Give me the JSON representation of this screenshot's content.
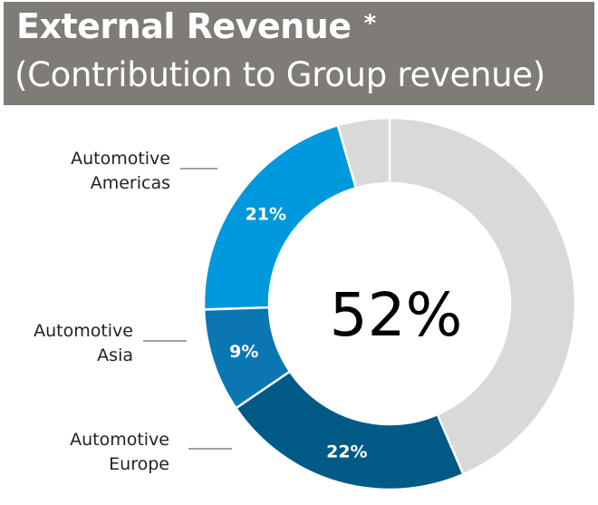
{
  "chart_data": {
    "type": "pie",
    "title": "External Revenue",
    "title_marker": "*",
    "subtitle": "(Contribution to Group revenue)",
    "center_label": "52%",
    "slices": [
      {
        "label_lines": [
          "Automotive",
          "Americas"
        ],
        "value": 21,
        "label": "21%",
        "color": "#0098dc"
      },
      {
        "label_lines": [
          "Automotive",
          "Asia"
        ],
        "value": 9,
        "label": "9%",
        "color": "#0b77b2"
      },
      {
        "label_lines": [
          "Automotive",
          "Europe"
        ],
        "value": 22,
        "label": "22%",
        "color": "#005a85"
      }
    ],
    "rest_color": "#d9d9d9",
    "gap_before": 4.5,
    "gap_after": 43.5,
    "colors": {
      "header_bg": "#7f7b76",
      "header_text": "#ffffff",
      "separator": "#ffffff",
      "leader_line": "#444444"
    }
  }
}
